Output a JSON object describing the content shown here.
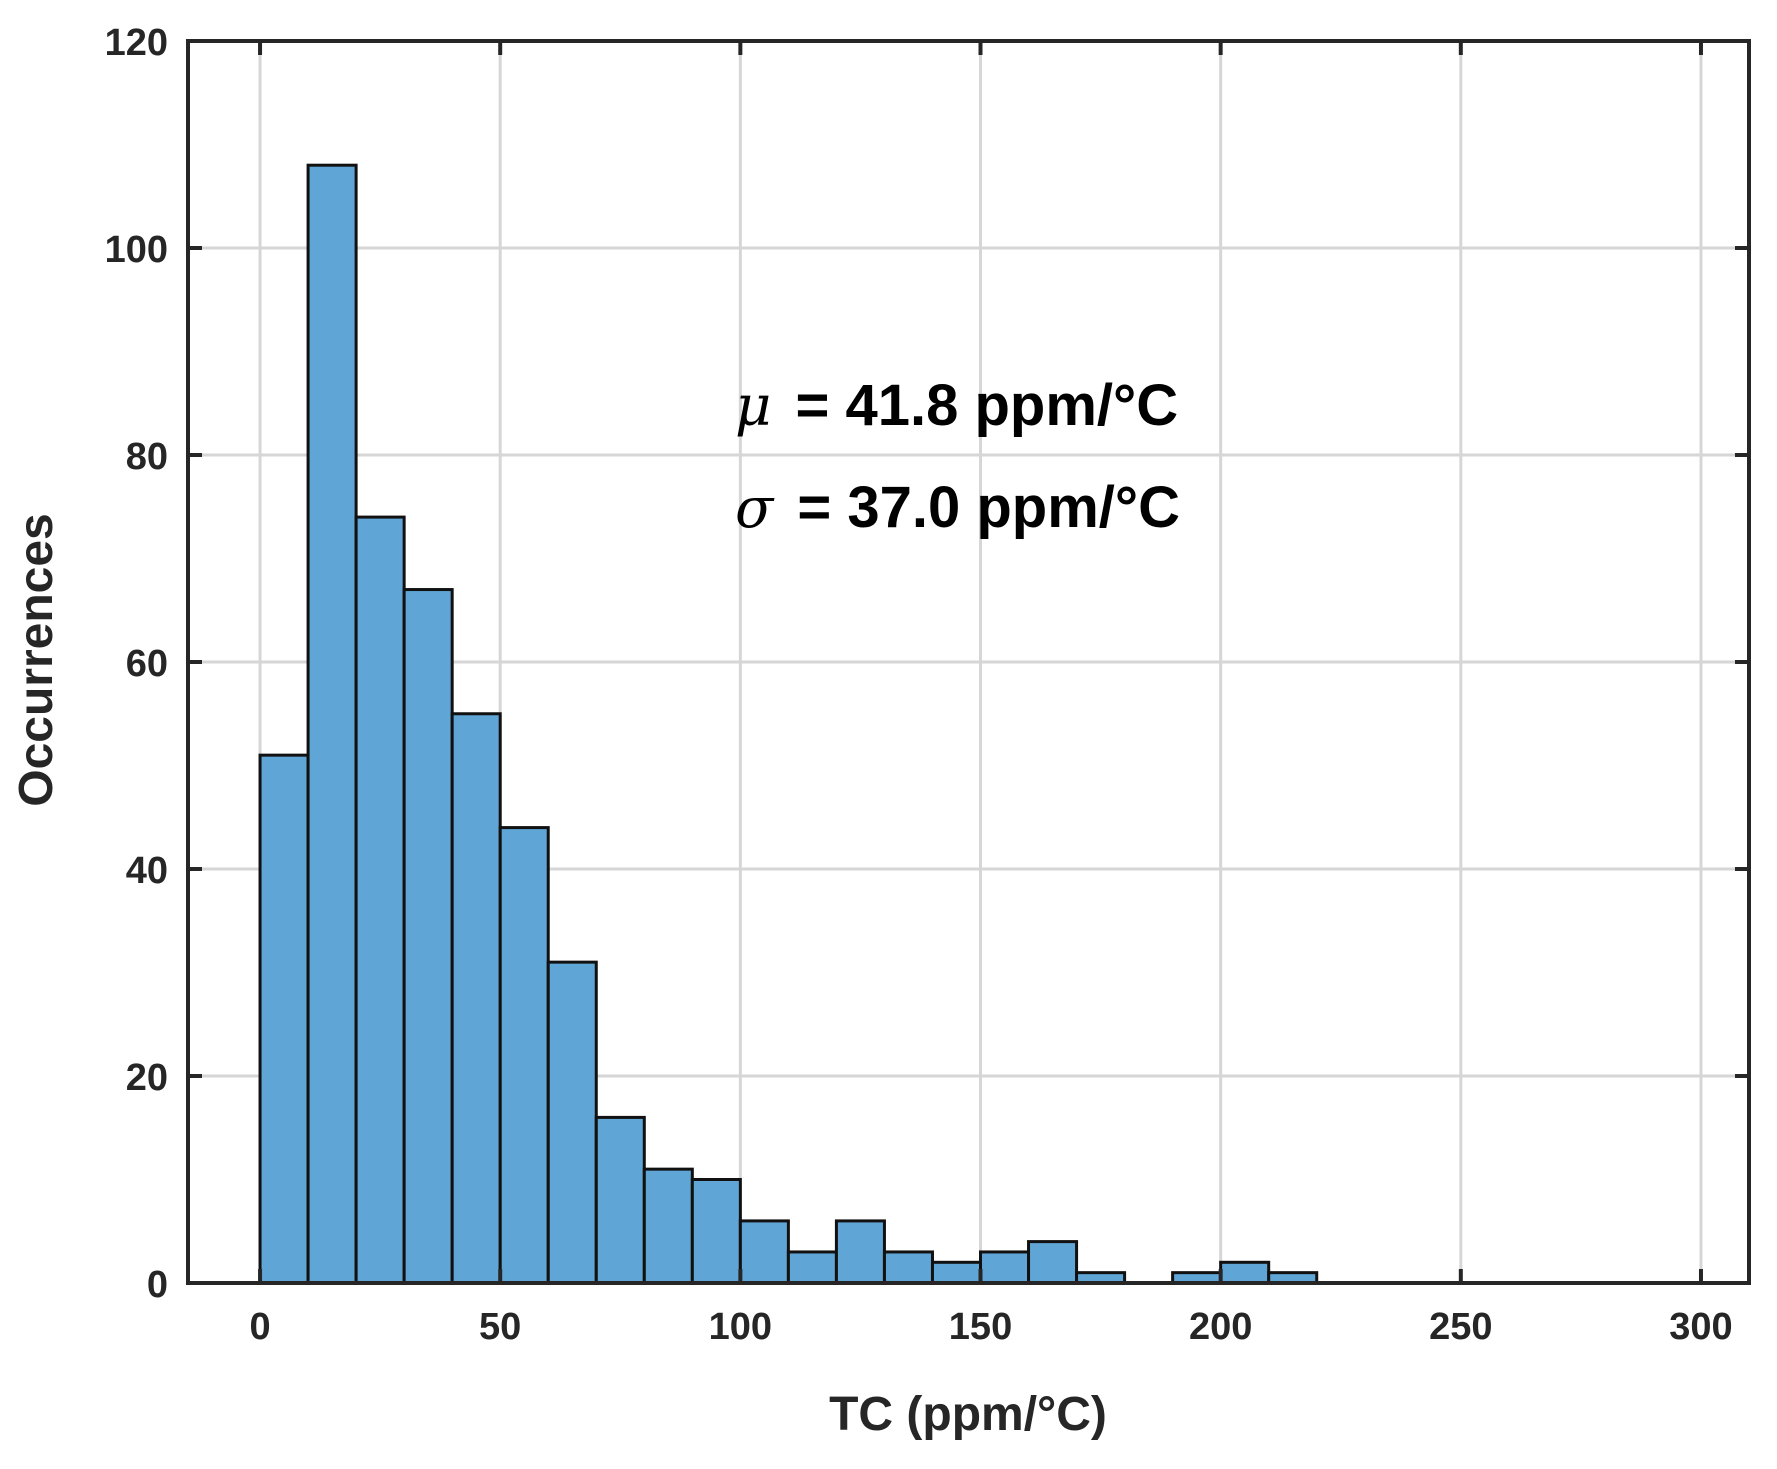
{
  "chart_data": {
    "type": "bar",
    "subtype": "histogram",
    "xlabel": "TC (ppm/°C)",
    "ylabel": "Occurrences",
    "xlim": [
      -15,
      310
    ],
    "ylim": [
      0,
      120
    ],
    "xticks": [
      0,
      50,
      100,
      150,
      200,
      250,
      300
    ],
    "yticks": [
      0,
      20,
      40,
      60,
      80,
      100,
      120
    ],
    "grid": true,
    "bin_width": 10,
    "bins": [
      {
        "x0": 0,
        "x1": 10,
        "value": 51
      },
      {
        "x0": 10,
        "x1": 20,
        "value": 108
      },
      {
        "x0": 20,
        "x1": 30,
        "value": 74
      },
      {
        "x0": 30,
        "x1": 40,
        "value": 67
      },
      {
        "x0": 40,
        "x1": 50,
        "value": 55
      },
      {
        "x0": 50,
        "x1": 60,
        "value": 44
      },
      {
        "x0": 60,
        "x1": 70,
        "value": 31
      },
      {
        "x0": 70,
        "x1": 80,
        "value": 16
      },
      {
        "x0": 80,
        "x1": 90,
        "value": 11
      },
      {
        "x0": 90,
        "x1": 100,
        "value": 10
      },
      {
        "x0": 100,
        "x1": 110,
        "value": 6
      },
      {
        "x0": 110,
        "x1": 120,
        "value": 3
      },
      {
        "x0": 120,
        "x1": 130,
        "value": 6
      },
      {
        "x0": 130,
        "x1": 140,
        "value": 3
      },
      {
        "x0": 140,
        "x1": 150,
        "value": 2
      },
      {
        "x0": 150,
        "x1": 160,
        "value": 3
      },
      {
        "x0": 160,
        "x1": 170,
        "value": 4
      },
      {
        "x0": 170,
        "x1": 180,
        "value": 1
      },
      {
        "x0": 180,
        "x1": 190,
        "value": 0
      },
      {
        "x0": 190,
        "x1": 200,
        "value": 1
      },
      {
        "x0": 200,
        "x1": 210,
        "value": 2
      },
      {
        "x0": 210,
        "x1": 220,
        "value": 1
      }
    ],
    "annotations": [
      {
        "symbol": "μ",
        "text": " = 41.8 ppm/°C"
      },
      {
        "symbol": "σ",
        "text": " = 37.0 ppm/°C"
      }
    ],
    "colors": {
      "bar_fill": "#5fa6d6",
      "bar_stroke": "#111111",
      "axis": "#262626",
      "grid": "#d6d6d6"
    }
  }
}
